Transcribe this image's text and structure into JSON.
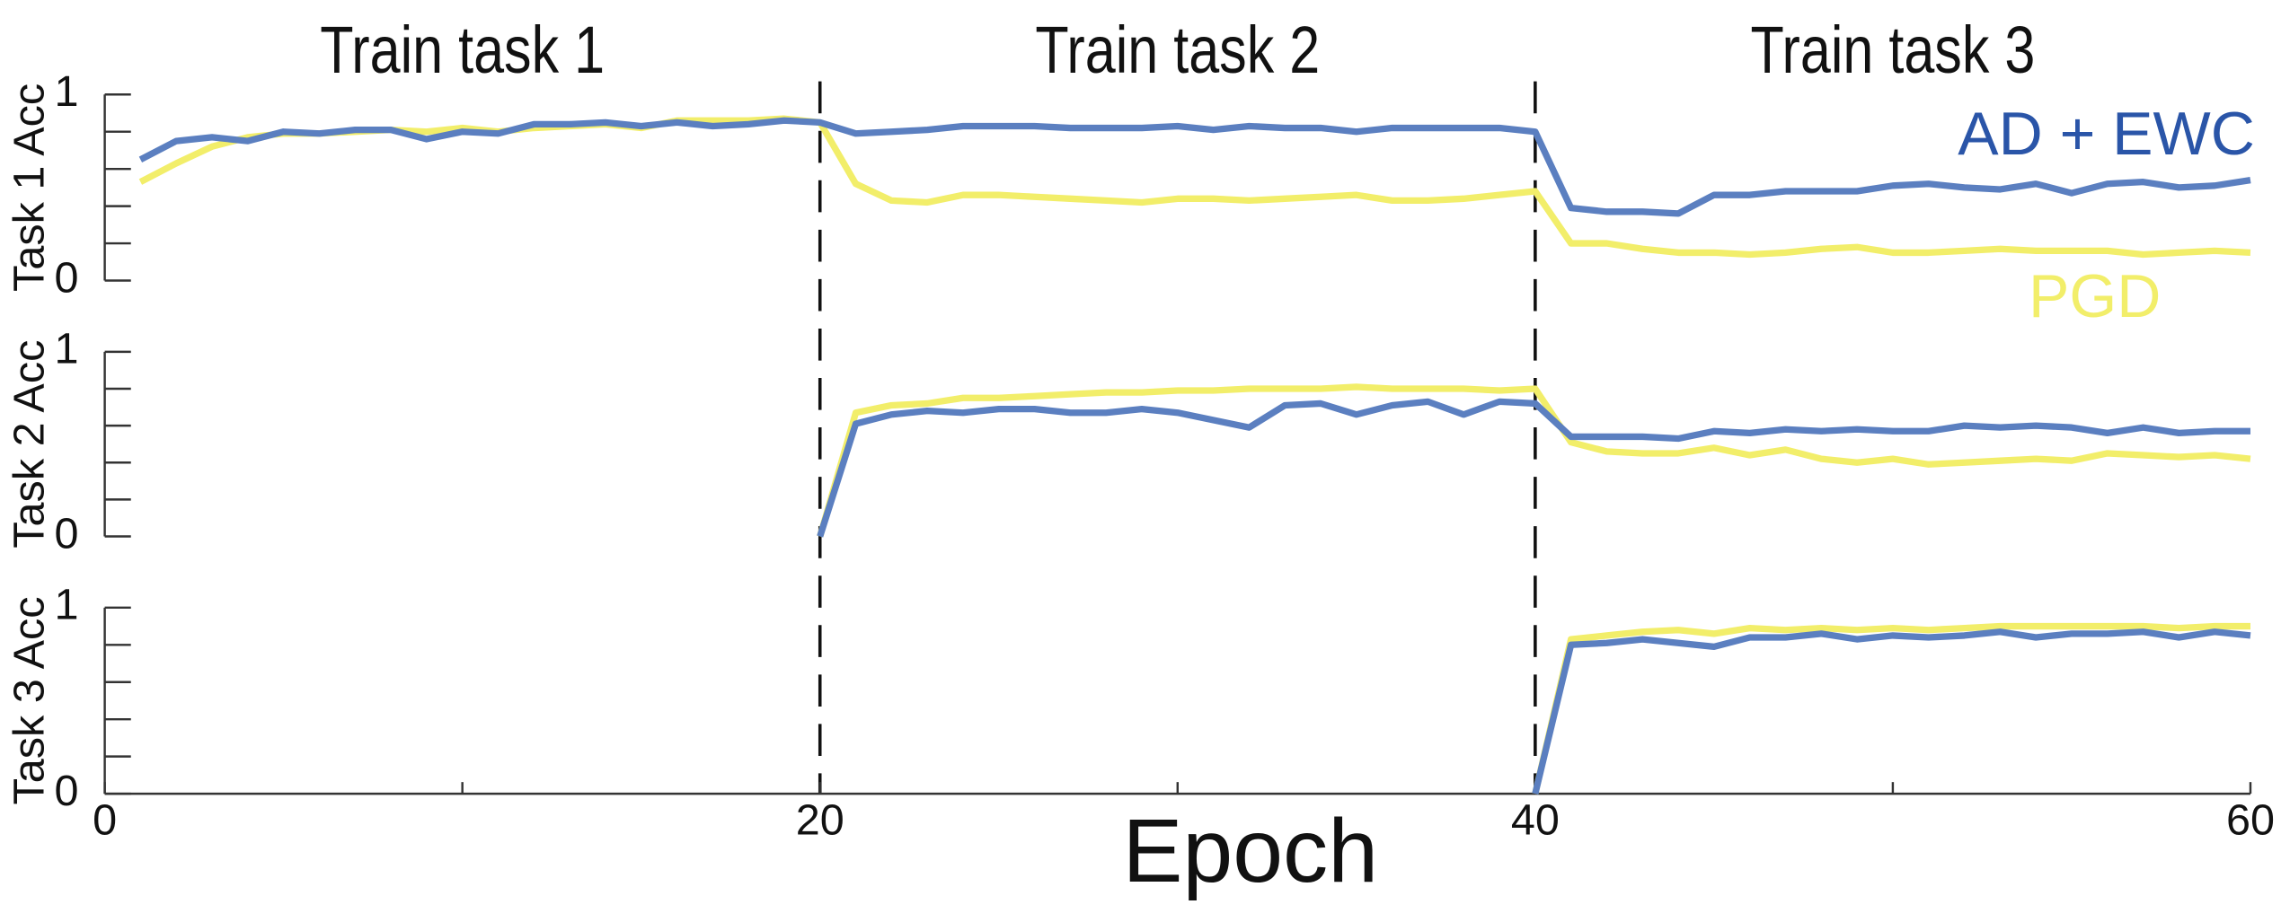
{
  "chart_data": [
    {
      "type": "line",
      "ylabel": "Task 1 Acc",
      "sections": [
        {
          "label": "Train task 1",
          "from": 0,
          "to": 20
        },
        {
          "label": "Train task 2",
          "from": 20,
          "to": 40
        },
        {
          "label": "Train task 3",
          "from": 40,
          "to": 60
        }
      ],
      "task_boundaries": [
        20,
        40
      ],
      "x": [
        1,
        2,
        3,
        4,
        5,
        6,
        7,
        8,
        9,
        10,
        11,
        12,
        13,
        14,
        15,
        16,
        17,
        18,
        19,
        20,
        21,
        22,
        23,
        24,
        25,
        26,
        27,
        28,
        29,
        30,
        31,
        32,
        33,
        34,
        35,
        36,
        37,
        38,
        39,
        40,
        41,
        42,
        43,
        44,
        45,
        46,
        47,
        48,
        49,
        50,
        51,
        52,
        53,
        54,
        55,
        56,
        57,
        58,
        59,
        60
      ],
      "series": [
        {
          "name": "AD + EWC",
          "color": "#5b7fc0",
          "label_color": "#2a55a8",
          "values": [
            0.65,
            0.75,
            0.77,
            0.75,
            0.8,
            0.79,
            0.81,
            0.81,
            0.76,
            0.8,
            0.79,
            0.84,
            0.84,
            0.85,
            0.83,
            0.85,
            0.83,
            0.84,
            0.86,
            0.85,
            0.79,
            0.8,
            0.81,
            0.83,
            0.83,
            0.83,
            0.82,
            0.82,
            0.82,
            0.83,
            0.81,
            0.83,
            0.82,
            0.82,
            0.8,
            0.82,
            0.82,
            0.82,
            0.82,
            0.8,
            0.39,
            0.37,
            0.37,
            0.36,
            0.46,
            0.46,
            0.48,
            0.48,
            0.48,
            0.51,
            0.52,
            0.5,
            0.49,
            0.52,
            0.47,
            0.52,
            0.53,
            0.5,
            0.51,
            0.54
          ]
        },
        {
          "name": "PGD",
          "color": "#f2ee6a",
          "label_color": "#f2ee6a",
          "values": [
            0.53,
            0.63,
            0.72,
            0.77,
            0.79,
            0.79,
            0.8,
            0.81,
            0.8,
            0.82,
            0.8,
            0.82,
            0.83,
            0.84,
            0.82,
            0.86,
            0.86,
            0.86,
            0.87,
            0.85,
            0.52,
            0.43,
            0.42,
            0.46,
            0.46,
            0.45,
            0.44,
            0.43,
            0.42,
            0.44,
            0.44,
            0.43,
            0.44,
            0.45,
            0.46,
            0.43,
            0.43,
            0.44,
            0.46,
            0.48,
            0.2,
            0.2,
            0.17,
            0.15,
            0.15,
            0.14,
            0.15,
            0.17,
            0.18,
            0.15,
            0.15,
            0.16,
            0.17,
            0.16,
            0.16,
            0.16,
            0.14,
            0.15,
            0.16,
            0.15
          ]
        }
      ],
      "xlim": [
        0,
        60
      ],
      "ylim": [
        0,
        1
      ],
      "yticks": [
        0,
        1
      ],
      "yminor_ticks": [
        0.2,
        0.4,
        0.6,
        0.8
      ]
    },
    {
      "type": "line",
      "ylabel": "Task 2 Acc",
      "x": [
        1,
        2,
        3,
        4,
        5,
        6,
        7,
        8,
        9,
        10,
        11,
        12,
        13,
        14,
        15,
        16,
        17,
        18,
        19,
        20,
        21,
        22,
        23,
        24,
        25,
        26,
        27,
        28,
        29,
        30,
        31,
        32,
        33,
        34,
        35,
        36,
        37,
        38,
        39,
        40,
        41,
        42,
        43,
        44,
        45,
        46,
        47,
        48,
        49,
        50,
        51,
        52,
        53,
        54,
        55,
        56,
        57,
        58,
        59,
        60
      ],
      "series": [
        {
          "name": "AD + EWC",
          "color": "#5b7fc0",
          "values": [
            null,
            null,
            null,
            null,
            null,
            null,
            null,
            null,
            null,
            null,
            null,
            null,
            null,
            null,
            null,
            null,
            null,
            null,
            null,
            0,
            0.61,
            0.66,
            0.68,
            0.67,
            0.69,
            0.69,
            0.67,
            0.67,
            0.69,
            0.67,
            0.63,
            0.59,
            0.71,
            0.72,
            0.66,
            0.71,
            0.73,
            0.66,
            0.73,
            0.72,
            0.54,
            0.54,
            0.54,
            0.53,
            0.57,
            0.56,
            0.58,
            0.57,
            0.58,
            0.57,
            0.57,
            0.6,
            0.59,
            0.6,
            0.59,
            0.56,
            0.59,
            0.56,
            0.57,
            0.57
          ]
        },
        {
          "name": "PGD",
          "color": "#f2ee6a",
          "values": [
            null,
            null,
            null,
            null,
            null,
            null,
            null,
            null,
            null,
            null,
            null,
            null,
            null,
            null,
            null,
            null,
            null,
            null,
            null,
            0,
            0.67,
            0.71,
            0.72,
            0.75,
            0.75,
            0.76,
            0.77,
            0.78,
            0.78,
            0.79,
            0.79,
            0.8,
            0.8,
            0.8,
            0.81,
            0.8,
            0.8,
            0.8,
            0.79,
            0.8,
            0.51,
            0.46,
            0.45,
            0.45,
            0.48,
            0.44,
            0.47,
            0.42,
            0.4,
            0.42,
            0.39,
            0.4,
            0.41,
            0.42,
            0.41,
            0.45,
            0.44,
            0.43,
            0.44,
            0.42
          ]
        }
      ],
      "xlim": [
        0,
        60
      ],
      "ylim": [
        0,
        1
      ],
      "yticks": [
        0,
        1
      ],
      "yminor_ticks": [
        0.2,
        0.4,
        0.6,
        0.8
      ]
    },
    {
      "type": "line",
      "ylabel": "Task 3 Acc",
      "xlabel": "Epoch",
      "x": [
        1,
        2,
        3,
        4,
        5,
        6,
        7,
        8,
        9,
        10,
        11,
        12,
        13,
        14,
        15,
        16,
        17,
        18,
        19,
        20,
        21,
        22,
        23,
        24,
        25,
        26,
        27,
        28,
        29,
        30,
        31,
        32,
        33,
        34,
        35,
        36,
        37,
        38,
        39,
        40,
        41,
        42,
        43,
        44,
        45,
        46,
        47,
        48,
        49,
        50,
        51,
        52,
        53,
        54,
        55,
        56,
        57,
        58,
        59,
        60
      ],
      "series": [
        {
          "name": "AD + EWC",
          "color": "#5b7fc0",
          "values": [
            null,
            null,
            null,
            null,
            null,
            null,
            null,
            null,
            null,
            null,
            null,
            null,
            null,
            null,
            null,
            null,
            null,
            null,
            null,
            null,
            null,
            null,
            null,
            null,
            null,
            null,
            null,
            null,
            null,
            null,
            null,
            null,
            null,
            null,
            null,
            null,
            null,
            null,
            null,
            0,
            0.8,
            0.81,
            0.83,
            0.81,
            0.79,
            0.84,
            0.84,
            0.86,
            0.83,
            0.85,
            0.84,
            0.85,
            0.87,
            0.84,
            0.86,
            0.86,
            0.87,
            0.84,
            0.87,
            0.85
          ]
        },
        {
          "name": "PGD",
          "color": "#f2ee6a",
          "values": [
            null,
            null,
            null,
            null,
            null,
            null,
            null,
            null,
            null,
            null,
            null,
            null,
            null,
            null,
            null,
            null,
            null,
            null,
            null,
            null,
            null,
            null,
            null,
            null,
            null,
            null,
            null,
            null,
            null,
            null,
            null,
            null,
            null,
            null,
            null,
            null,
            null,
            null,
            null,
            0,
            0.83,
            0.85,
            0.87,
            0.88,
            0.86,
            0.89,
            0.88,
            0.89,
            0.88,
            0.89,
            0.88,
            0.89,
            0.9,
            0.9,
            0.9,
            0.9,
            0.9,
            0.89,
            0.9,
            0.9
          ]
        }
      ],
      "xlim": [
        0,
        60
      ],
      "xticks": [
        0,
        20,
        40,
        60
      ],
      "xminor_ticks": [
        10,
        30,
        50
      ],
      "ylim": [
        0,
        1
      ],
      "yticks": [
        0,
        1
      ],
      "yminor_ticks": [
        0.2,
        0.4,
        0.6,
        0.8
      ]
    }
  ]
}
